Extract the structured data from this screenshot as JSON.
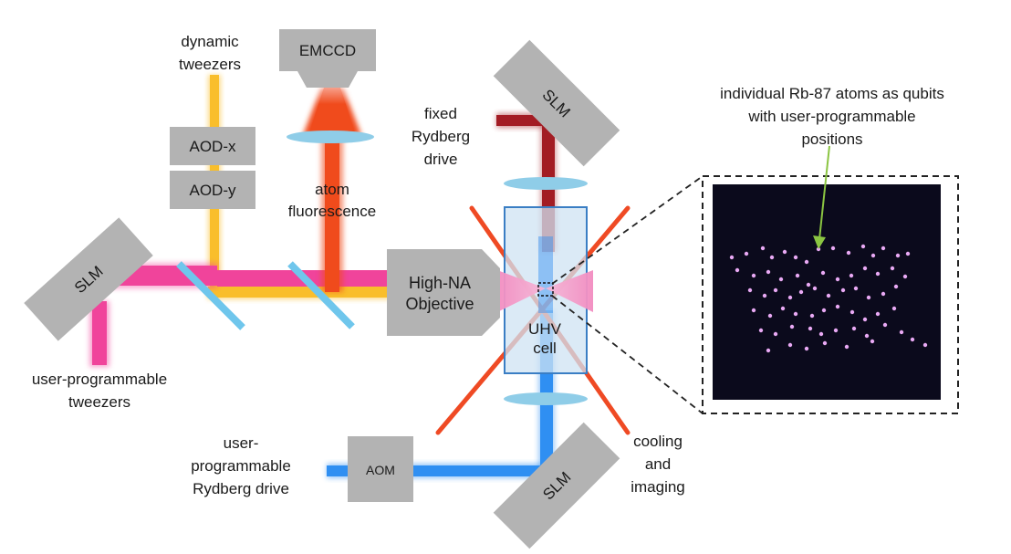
{
  "labels": {
    "dynamic_tweezers": [
      "dynamic",
      "tweezers"
    ],
    "emccd": "EMCCD",
    "aod_x": "AOD-x",
    "aod_y": "AOD-y",
    "atom_fluorescence": [
      "atom",
      "fluorescence"
    ],
    "fixed_rydberg_drive": [
      "fixed",
      "Rydberg",
      "drive"
    ],
    "slm": "SLM",
    "objective": [
      "High-NA",
      "Objective"
    ],
    "uhv_cell": [
      "UHV",
      "cell"
    ],
    "user_tweezers": [
      "user-programmable",
      "tweezers"
    ],
    "user_rydberg_drive": [
      "user-",
      "programmable",
      "Rydberg drive"
    ],
    "aom": "AOM",
    "cooling_imaging": [
      "cooling",
      "and",
      "imaging"
    ],
    "atoms_caption": [
      "individual Rb-87 atoms as qubits",
      "with user-programmable",
      "positions"
    ]
  },
  "colors": {
    "dynamic_beam": "#f9be2b",
    "tweezer_beam": "#f0449b",
    "fluorescence_beam": "#f04b1c",
    "rydberg_fixed_beam": "#a31c24",
    "rydberg_user_beam": "#2f8ff2",
    "cooling_beam": "#ef4a24",
    "component_gray": "#b3b3b3",
    "lens": "#8fcde8",
    "atom_image_bg": "#0b0a1c",
    "atom": "#e9a9f4",
    "pointer_arrow": "#8bc542"
  }
}
